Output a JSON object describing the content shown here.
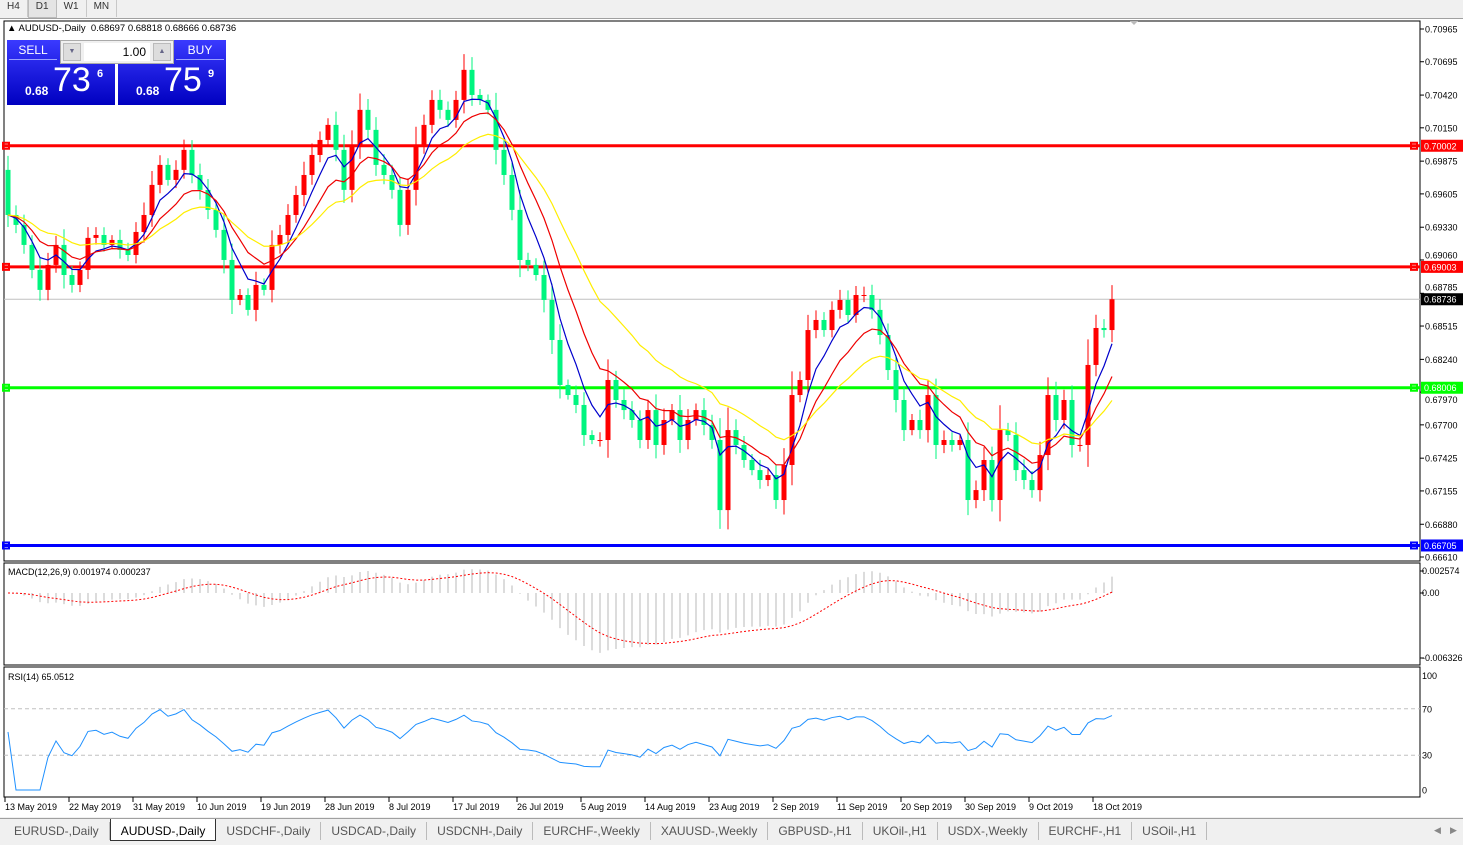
{
  "timeframes": [
    {
      "label": "H4"
    },
    {
      "label": "D1",
      "active": true
    },
    {
      "label": "W1"
    },
    {
      "label": "MN"
    }
  ],
  "chart": {
    "symbol_line": "AUDUSD-,Daily",
    "ohlc_line": "0.68697 0.68818 0.68666 0.68736",
    "first_open": 0.69803,
    "closes": [
      0.69431,
      0.69349,
      0.69184,
      0.68978,
      0.68813,
      0.69019,
      0.69184,
      0.68936,
      0.68854,
      0.68978,
      0.69242,
      0.69266,
      0.69184,
      0.69225,
      0.69143,
      0.69101,
      0.69291,
      0.69431,
      0.69679,
      0.69844,
      0.6972,
      0.69803,
      0.69968,
      0.69761,
      0.69638,
      0.69473,
      0.69308,
      0.6906,
      0.6873,
      0.68771,
      0.68648,
      0.68854,
      0.68813,
      0.69184,
      0.69266,
      0.69431,
      0.69596,
      0.69761,
      0.69926,
      0.7005,
      0.70174,
      0.69968,
      0.69638,
      0.70009,
      0.70298,
      0.70133,
      0.69844,
      0.69761,
      0.69638,
      0.69349,
      0.69638,
      0.70009,
      0.70174,
      0.7038,
      0.70298,
      0.70215,
      0.7038,
      0.70628,
      0.70421,
      0.7038,
      0.70298,
      0.69968,
      0.69761,
      0.69473,
      0.6906,
      0.69019,
      0.68936,
      0.6873,
      0.684,
      0.68029,
      0.67946,
      0.67864,
      0.67616,
      0.67575,
      0.67575,
      0.6807,
      0.67905,
      0.67822,
      0.6774,
      0.67575,
      0.67822,
      0.67534,
      0.6774,
      0.67822,
      0.67575,
      0.6774,
      0.67822,
      0.67699,
      0.67575,
      0.66997,
      0.67657,
      0.67534,
      0.6741,
      0.67327,
      0.67245,
      0.67286,
      0.6708,
      0.67369,
      0.67946,
      0.6807,
      0.68482,
      0.68565,
      0.68482,
      0.68648,
      0.6873,
      0.68606,
      0.68771,
      0.68771,
      0.68648,
      0.68441,
      0.68152,
      0.67905,
      0.67657,
      0.6774,
      0.67657,
      0.67946,
      0.67534,
      0.67575,
      0.67534,
      0.67575,
      0.6708,
      0.67162,
      0.6741,
      0.6708,
      0.67657,
      0.67616,
      0.67327,
      0.67245,
      0.67162,
      0.67451,
      0.67946,
      0.6774,
      0.67905,
      0.67534,
      0.67534,
      0.68194,
      0.68499,
      0.68482,
      0.68736
    ],
    "price_ticks": [
      "0.70965",
      "0.70695",
      "0.70420",
      "0.70150",
      "0.69875",
      "0.69605",
      "0.69330",
      "0.69060",
      "0.68785",
      "0.68515",
      "0.68240",
      "0.67970",
      "0.67700",
      "0.67425",
      "0.67155",
      "0.66880",
      "0.66610"
    ],
    "levels": [
      {
        "price": "0.70002",
        "color": "#ff0000"
      },
      {
        "price": "0.69003",
        "color": "#ff0000"
      },
      {
        "price": "0.68006",
        "color": "#00ff00"
      },
      {
        "price": "0.66705",
        "color": "#0000ff"
      }
    ],
    "current_price": "0.68736",
    "bull_color": "#ff0000",
    "bear_color": "#00f57f",
    "ma_colors": [
      "#0000cc",
      "#ee0000",
      "#ffee00"
    ],
    "date_labels": [
      "13 May 2019",
      "22 May 2019",
      "31 May 2019",
      "10 Jun 2019",
      "19 Jun 2019",
      "28 Jun 2019",
      "8 Jul 2019",
      "17 Jul 2019",
      "26 Jul 2019",
      "5 Aug 2019",
      "14 Aug 2019",
      "23 Aug 2019",
      "2 Sep 2019",
      "11 Sep 2019",
      "20 Sep 2019",
      "30 Sep 2019",
      "9 Oct 2019",
      "18 Oct 2019"
    ]
  },
  "macd": {
    "label": "MACD(12,26,9) 0.001974 0.000237",
    "ticks": [
      "0.002574",
      "0.00",
      "-0.006326"
    ],
    "range": [
      -0.006326,
      0.002574
    ]
  },
  "rsi": {
    "label": "RSI(14) 65.0512",
    "ticks": [
      "100",
      "70",
      "30",
      "0"
    ],
    "levels": [
      70,
      30
    ],
    "range": [
      0,
      100
    ]
  },
  "trade_panel": {
    "sell_label": "SELL",
    "buy_label": "BUY",
    "lot": "1.00",
    "sell_prefix": "0.68",
    "sell_big": "73",
    "sell_sup": "6",
    "buy_prefix": "0.68",
    "buy_big": "75",
    "buy_sup": "9"
  },
  "symbol_tabs": [
    {
      "label": "EURUSD-,Daily"
    },
    {
      "label": "AUDUSD-,Daily",
      "active": true
    },
    {
      "label": "USDCHF-,Daily"
    },
    {
      "label": "USDCAD-,Daily"
    },
    {
      "label": "USDCNH-,Daily"
    },
    {
      "label": "EURCHF-,Weekly"
    },
    {
      "label": "XAUUSD-,Weekly"
    },
    {
      "label": "GBPUSD-,H1"
    },
    {
      "label": "UKOil-,H1"
    },
    {
      "label": "USDX-,Weekly"
    },
    {
      "label": "EURCHF-,H1"
    },
    {
      "label": "USOil-,H1"
    }
  ]
}
